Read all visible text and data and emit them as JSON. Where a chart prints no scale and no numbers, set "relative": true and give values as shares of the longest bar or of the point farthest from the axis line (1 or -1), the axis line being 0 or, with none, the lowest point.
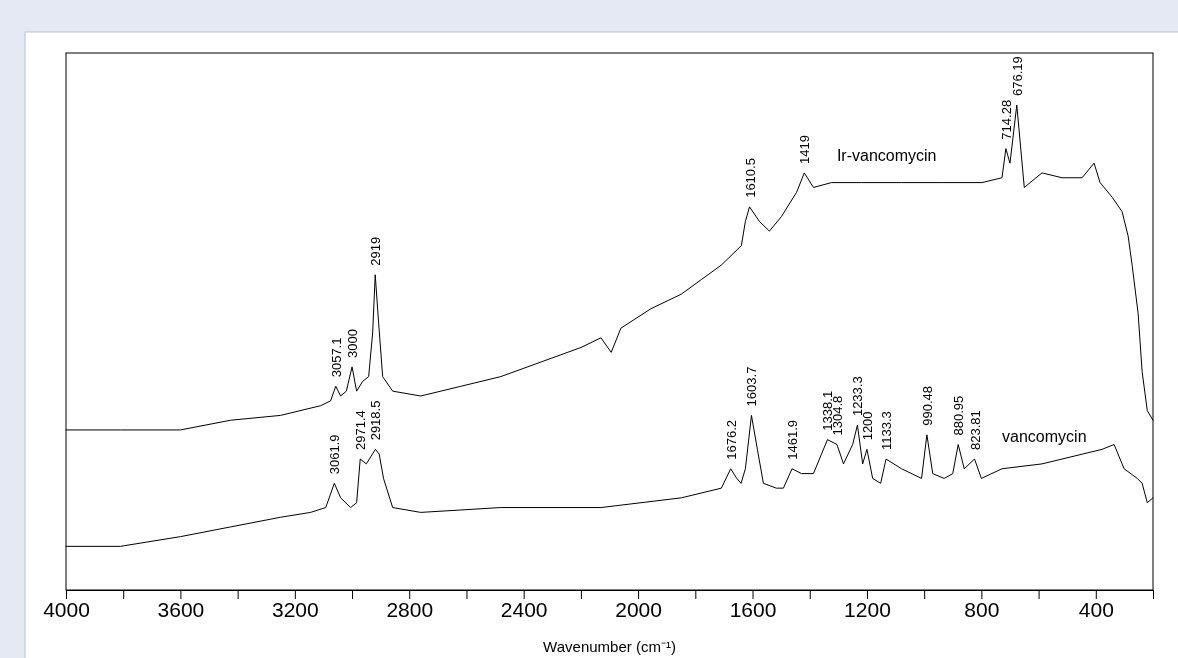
{
  "chart_data": {
    "type": "line",
    "xlabel": "Wavenumber (cm⁻¹)",
    "relative": true,
    "legend": false,
    "tick_labels": "x",
    "grid": false,
    "marker": "none",
    "line_style": "solid",
    "xlim": [
      4000,
      200
    ],
    "xticks": [
      4000,
      {
        "value": 3800,
        "label": null
      },
      3600,
      {
        "value": 3400,
        "label": null
      },
      3200,
      {
        "value": 3000,
        "label": null
      },
      2800,
      {
        "value": 2600,
        "label": null
      },
      2400,
      {
        "value": 2200,
        "label": null
      },
      2000,
      {
        "value": 1800,
        "label": null
      },
      1600,
      {
        "value": 1400,
        "label": null
      },
      1200,
      {
        "value": 1000,
        "label": null
      },
      800,
      {
        "value": 600,
        "label": null
      },
      400,
      {
        "value": 200,
        "label": null
      }
    ],
    "series": [
      {
        "name": "Ir-vancomycin",
        "color": "#000000",
        "x": [
          4000,
          3810,
          3600,
          3425,
          3250,
          3110,
          3075,
          3057.1,
          3040,
          3020,
          3000,
          2984,
          2963,
          2942,
          2928,
          2919,
          2907,
          2893,
          2858,
          2760,
          2620,
          2480,
          2340,
          2200,
          2130,
          2094,
          2060,
          1955,
          1849,
          1779,
          1709,
          1639,
          1625,
          1610.5,
          1576,
          1541,
          1499,
          1446,
          1419,
          1387,
          1324,
          1219,
          1079,
          938,
          798,
          728,
          714.28,
          700,
          676.19,
          650,
          588,
          518,
          448,
          406,
          385,
          343,
          308,
          287,
          273,
          252,
          238,
          220,
          200
        ],
        "values": [
          0.33,
          0.33,
          0.33,
          0.35,
          0.36,
          0.38,
          0.39,
          0.42,
          0.4,
          0.41,
          0.46,
          0.41,
          0.43,
          0.44,
          0.53,
          0.65,
          0.55,
          0.44,
          0.41,
          0.4,
          0.42,
          0.44,
          0.47,
          0.5,
          0.52,
          0.49,
          0.54,
          0.58,
          0.61,
          0.64,
          0.67,
          0.71,
          0.76,
          0.79,
          0.76,
          0.74,
          0.77,
          0.82,
          0.86,
          0.83,
          0.84,
          0.84,
          0.84,
          0.84,
          0.84,
          0.85,
          0.91,
          0.88,
          1.0,
          0.83,
          0.86,
          0.85,
          0.85,
          0.88,
          0.84,
          0.81,
          0.78,
          0.73,
          0.67,
          0.57,
          0.45,
          0.37,
          0.35
        ]
      },
      {
        "name": "vancomycin",
        "color": "#000000",
        "x": [
          4000,
          3810,
          3600,
          3425,
          3250,
          3145,
          3092,
          3061.9,
          3040,
          3005,
          2984,
          2971.4,
          2950,
          2918.5,
          2905,
          2890,
          2858,
          2760,
          2480,
          2130,
          1849,
          1709,
          1676.2,
          1655,
          1640,
          1625,
          1603.7,
          1583,
          1562,
          1517,
          1492,
          1461.9,
          1429,
          1387,
          1359,
          1338.1,
          1304.8,
          1282,
          1250,
          1233.3,
          1215,
          1200,
          1180,
          1152,
          1133.3,
          1079,
          1009,
          990.48,
          970,
          930,
          900,
          880.95,
          860,
          823.81,
          800,
          728,
          588,
          448,
          378,
          336,
          301,
          255,
          238,
          220,
          200
        ],
        "values": [
          0.09,
          0.09,
          0.11,
          0.13,
          0.15,
          0.16,
          0.17,
          0.22,
          0.19,
          0.17,
          0.18,
          0.27,
          0.26,
          0.29,
          0.28,
          0.23,
          0.17,
          0.16,
          0.17,
          0.17,
          0.19,
          0.21,
          0.25,
          0.23,
          0.22,
          0.25,
          0.36,
          0.29,
          0.22,
          0.21,
          0.21,
          0.25,
          0.24,
          0.24,
          0.28,
          0.31,
          0.3,
          0.26,
          0.3,
          0.34,
          0.26,
          0.29,
          0.23,
          0.22,
          0.27,
          0.25,
          0.23,
          0.32,
          0.24,
          0.23,
          0.24,
          0.3,
          0.25,
          0.27,
          0.23,
          0.25,
          0.26,
          0.28,
          0.29,
          0.3,
          0.25,
          0.23,
          0.22,
          0.18,
          0.19
        ]
      }
    ],
    "annotations": [
      {
        "text": "3057.1",
        "x": 3057.1,
        "y": 0.42
      },
      {
        "text": "3000",
        "x": 3000,
        "y": 0.46
      },
      {
        "text": "2919",
        "x": 2919,
        "y": 0.65
      },
      {
        "text": "1610.5",
        "x": 1610.5,
        "y": 0.79
      },
      {
        "text": "1419",
        "x": 1419,
        "y": 0.86
      },
      {
        "text": "714.28",
        "x": 714.28,
        "y": 0.91
      },
      {
        "text": "676.19",
        "x": 676.19,
        "y": 1.0
      },
      {
        "text": "3061.9",
        "x": 3061.9,
        "y": 0.22
      },
      {
        "text": "2971.4",
        "x": 2971.4,
        "y": 0.27
      },
      {
        "text": "2918.5",
        "x": 2918.5,
        "y": 0.29
      },
      {
        "text": "1676.2",
        "x": 1676.2,
        "y": 0.25
      },
      {
        "text": "1603.7",
        "x": 1603.7,
        "y": 0.36
      },
      {
        "text": "1461.9",
        "x": 1461.9,
        "y": 0.25
      },
      {
        "text": "1338.1",
        "x": 1338.1,
        "y": 0.31
      },
      {
        "text": "1304.8",
        "x": 1304.8,
        "y": 0.3
      },
      {
        "text": "1233.3",
        "x": 1233.3,
        "y": 0.34
      },
      {
        "text": "1200",
        "x": 1200,
        "y": 0.29
      },
      {
        "text": "1133.3",
        "x": 1133.3,
        "y": 0.27
      },
      {
        "text": "990.48",
        "x": 990.48,
        "y": 0.32
      },
      {
        "text": "880.95",
        "x": 880.95,
        "y": 0.3
      },
      {
        "text": "823.81",
        "x": 823.81,
        "y": 0.27
      }
    ]
  }
}
